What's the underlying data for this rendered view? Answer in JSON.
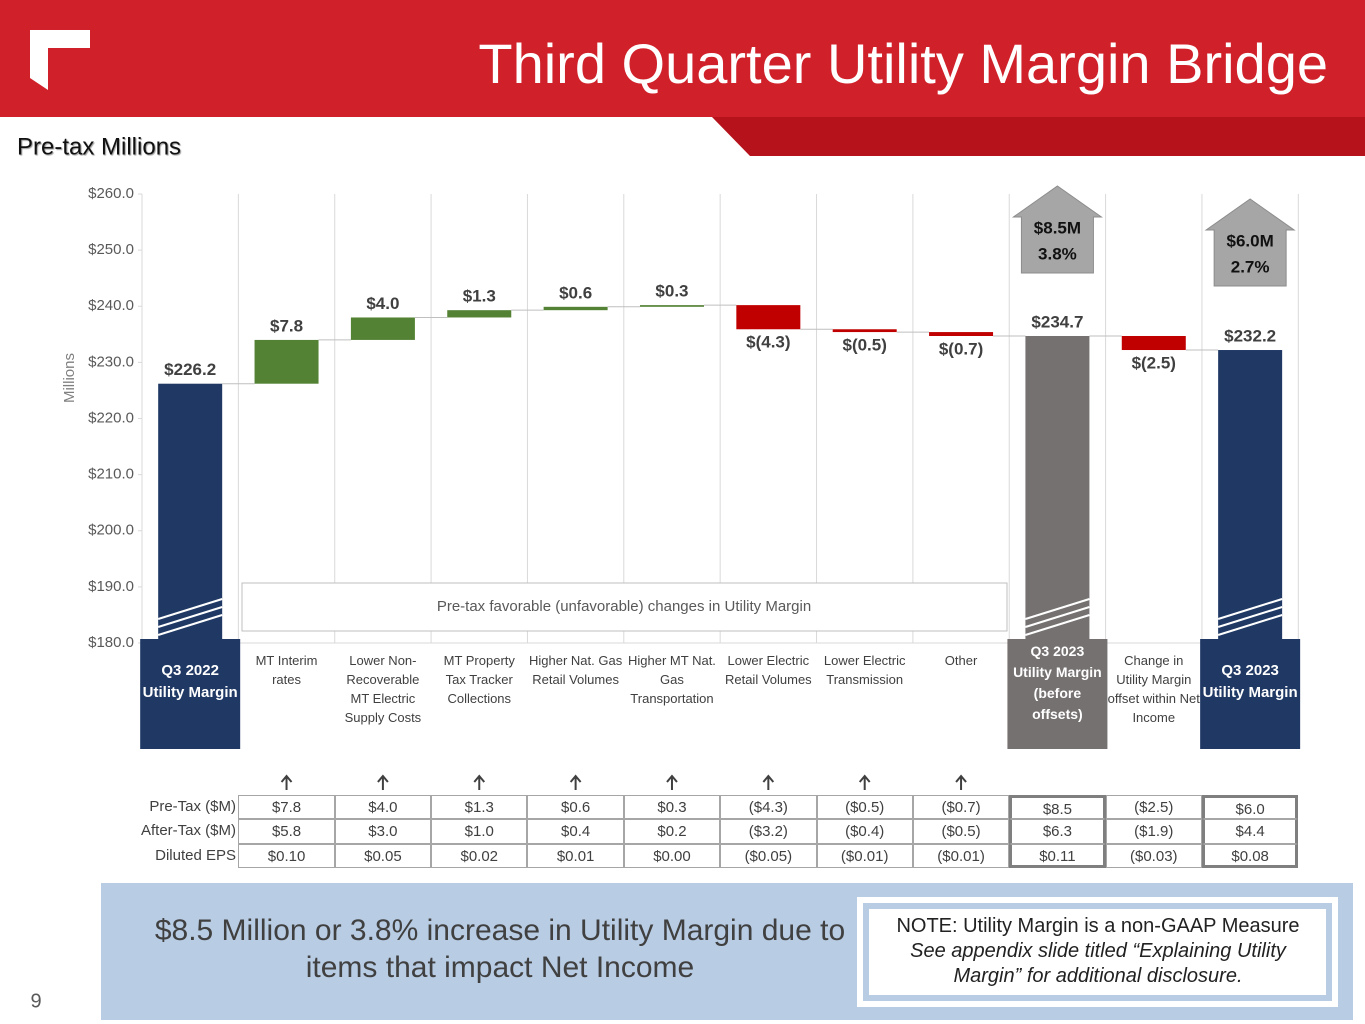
{
  "header": {
    "title": "Third Quarter Utility Margin Bridge",
    "subtitle": "Pre-tax Millions"
  },
  "chart_data": {
    "type": "waterfall",
    "categories": [
      "Q3 2022 Utility Margin",
      "MT Interim rates",
      "Lower Non-Recoverable MT Electric Supply Costs",
      "MT Property Tax Tracker Collections",
      "Higher Nat. Gas Retail Volumes",
      "Higher MT Nat. Gas Transportation",
      "Lower Electric Retail Volumes",
      "Lower Electric Transmission",
      "Other",
      "Q3 2023 Utility Margin (before offsets)",
      "Change in Utility Margin offset within Net Income",
      "Q3 2023 Utility Margin"
    ],
    "values": [
      226.2,
      7.8,
      4.0,
      1.3,
      0.6,
      0.3,
      -4.3,
      -0.5,
      -0.7,
      234.7,
      -2.5,
      232.2
    ],
    "value_labels": [
      "$226.2",
      "$7.8",
      "$4.0",
      "$1.3",
      "$0.6",
      "$0.3",
      "$(4.3)",
      "$(0.5)",
      "$(0.7)",
      "$234.7",
      "$(2.5)",
      "$232.2"
    ],
    "is_total": [
      true,
      false,
      false,
      false,
      false,
      false,
      false,
      false,
      false,
      true,
      false,
      true
    ],
    "colors": [
      "#1f3864",
      "#548235",
      "#548235",
      "#548235",
      "#548235",
      "#548235",
      "#c00000",
      "#c00000",
      "#c00000",
      "#767171",
      "#c00000",
      "#1f3864"
    ],
    "y_label": "Millions",
    "ylim": [
      180,
      260
    ],
    "yticks": [
      {
        "value": 180,
        "label": "$180.0"
      },
      {
        "value": 190,
        "label": "$190.0"
      },
      {
        "value": 200,
        "label": "$200.0"
      },
      {
        "value": 210,
        "label": "$210.0"
      },
      {
        "value": 220,
        "label": "$220.0"
      },
      {
        "value": 230,
        "label": "$230.0"
      },
      {
        "value": 240,
        "label": "$240.0"
      },
      {
        "value": 250,
        "label": "$250.0"
      },
      {
        "value": 260,
        "label": "$260.0"
      }
    ],
    "annotation": "Pre-tax favorable (unfavorable) changes in Utility Margin",
    "callouts": [
      {
        "text": "$8.5M",
        "sub": "3.8%"
      },
      {
        "text": "$6.0M",
        "sub": "2.7%"
      }
    ]
  },
  "table": {
    "rows": [
      {
        "label": "Pre-Tax ($M)",
        "cells": [
          "$7.8",
          "$4.0",
          "$1.3",
          "$0.6",
          "$0.3",
          "($4.3)",
          "($0.5)",
          "($0.7)",
          "$8.5",
          "($2.5)",
          "$6.0"
        ]
      },
      {
        "label": "After-Tax ($M)",
        "cells": [
          "$5.8",
          "$3.0",
          "$1.0",
          "$0.4",
          "$0.2",
          "($3.2)",
          "($0.4)",
          "($0.5)",
          "$6.3",
          "($1.9)",
          "$4.4"
        ]
      },
      {
        "label": "Diluted EPS",
        "cells": [
          "$0.10",
          "$0.05",
          "$0.02",
          "$0.01",
          "$0.00",
          "($0.05)",
          "($0.01)",
          "($0.01)",
          "$0.11",
          "($0.03)",
          "$0.08"
        ]
      }
    ]
  },
  "footer": {
    "summary": "$8.5 Million or 3.8% increase in Utility Margin due to items that impact Net Income",
    "note": "NOTE: Utility Margin is a non-GAAP Measure",
    "note_detail": "See appendix slide titled “Explaining Utility Margin” for additional disclosure.",
    "page": "9"
  }
}
